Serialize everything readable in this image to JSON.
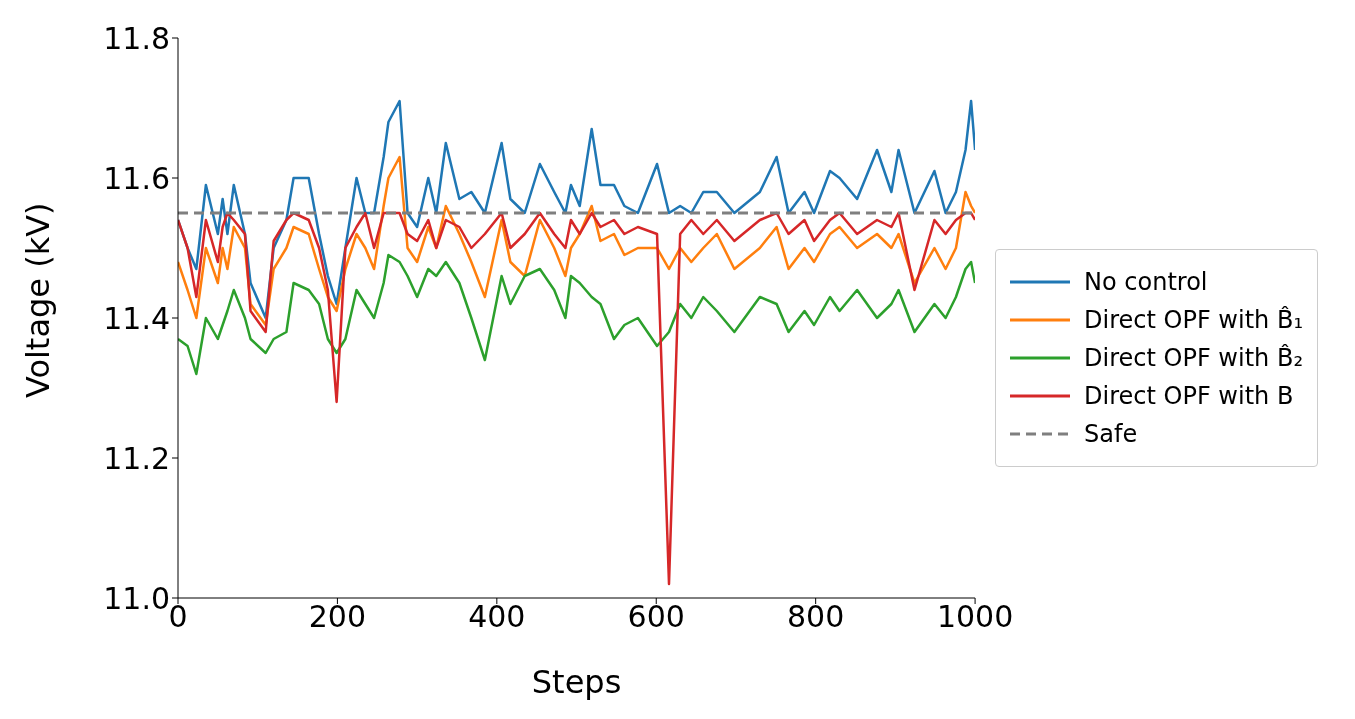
{
  "chart_data": {
    "type": "line",
    "xlabel": "Steps",
    "ylabel": "Voltage (kV)",
    "x": [
      0,
      12,
      23,
      35,
      50,
      56,
      62,
      70,
      84,
      91,
      110,
      120,
      136,
      145,
      164,
      177,
      188,
      199,
      210,
      224,
      235,
      246,
      258,
      264,
      278,
      288,
      300,
      314,
      324,
      336,
      353,
      368,
      385,
      406,
      417,
      435,
      454,
      472,
      486,
      493,
      504,
      519,
      530,
      547,
      560,
      577,
      601,
      616,
      630,
      644,
      659,
      676,
      698,
      730,
      751,
      766,
      786,
      798,
      818,
      830,
      852,
      877,
      895,
      904,
      924,
      949,
      963,
      976,
      988,
      995,
      1000
    ],
    "series": [
      {
        "name": "No control",
        "color": "#1f77b4",
        "values": [
          11.54,
          11.5,
          11.47,
          11.59,
          11.52,
          11.57,
          11.52,
          11.59,
          11.52,
          11.45,
          11.4,
          11.5,
          11.54,
          11.6,
          11.6,
          11.52,
          11.46,
          11.42,
          11.5,
          11.6,
          11.55,
          11.55,
          11.63,
          11.68,
          11.71,
          11.55,
          11.53,
          11.6,
          11.55,
          11.65,
          11.57,
          11.58,
          11.55,
          11.65,
          11.57,
          11.55,
          11.62,
          11.58,
          11.55,
          11.59,
          11.56,
          11.67,
          11.59,
          11.59,
          11.56,
          11.55,
          11.62,
          11.55,
          11.56,
          11.55,
          11.58,
          11.58,
          11.55,
          11.58,
          11.63,
          11.55,
          11.58,
          11.55,
          11.61,
          11.6,
          11.57,
          11.64,
          11.58,
          11.64,
          11.55,
          11.61,
          11.55,
          11.58,
          11.64,
          11.71,
          11.64
        ]
      },
      {
        "name": "Direct OPF with B̂₁",
        "color": "#ff7f0e",
        "values": [
          11.48,
          11.44,
          11.4,
          11.5,
          11.45,
          11.5,
          11.47,
          11.53,
          11.5,
          11.42,
          11.39,
          11.47,
          11.5,
          11.53,
          11.52,
          11.47,
          11.43,
          11.41,
          11.47,
          11.52,
          11.5,
          11.47,
          11.56,
          11.6,
          11.63,
          11.5,
          11.48,
          11.53,
          11.5,
          11.56,
          11.52,
          11.48,
          11.43,
          11.54,
          11.48,
          11.46,
          11.54,
          11.5,
          11.46,
          11.5,
          11.52,
          11.56,
          11.51,
          11.52,
          11.49,
          11.5,
          11.5,
          11.47,
          11.5,
          11.48,
          11.5,
          11.52,
          11.47,
          11.5,
          11.53,
          11.47,
          11.5,
          11.48,
          11.52,
          11.53,
          11.5,
          11.52,
          11.5,
          11.52,
          11.45,
          11.5,
          11.47,
          11.5,
          11.58,
          11.56,
          11.55
        ]
      },
      {
        "name": "Direct OPF with B̂₂",
        "color": "#2ca02c",
        "values": [
          11.37,
          11.36,
          11.32,
          11.4,
          11.37,
          11.39,
          11.41,
          11.44,
          11.4,
          11.37,
          11.35,
          11.37,
          11.38,
          11.45,
          11.44,
          11.42,
          11.37,
          11.35,
          11.37,
          11.44,
          11.42,
          11.4,
          11.45,
          11.49,
          11.48,
          11.46,
          11.43,
          11.47,
          11.46,
          11.48,
          11.45,
          11.4,
          11.34,
          11.46,
          11.42,
          11.46,
          11.47,
          11.44,
          11.4,
          11.46,
          11.45,
          11.43,
          11.42,
          11.37,
          11.39,
          11.4,
          11.36,
          11.38,
          11.42,
          11.4,
          11.43,
          11.41,
          11.38,
          11.43,
          11.42,
          11.38,
          11.41,
          11.39,
          11.43,
          11.41,
          11.44,
          11.4,
          11.42,
          11.44,
          11.38,
          11.42,
          11.4,
          11.43,
          11.47,
          11.48,
          11.45
        ]
      },
      {
        "name": "Direct OPF with B",
        "color": "#d62728",
        "values": [
          11.54,
          11.5,
          11.43,
          11.54,
          11.48,
          11.53,
          11.55,
          11.54,
          11.52,
          11.41,
          11.38,
          11.51,
          11.54,
          11.55,
          11.54,
          11.5,
          11.44,
          11.28,
          11.5,
          11.53,
          11.55,
          11.5,
          11.55,
          11.55,
          11.55,
          11.52,
          11.51,
          11.54,
          11.5,
          11.54,
          11.53,
          11.5,
          11.52,
          11.55,
          11.5,
          11.52,
          11.55,
          11.52,
          11.5,
          11.54,
          11.52,
          11.55,
          11.53,
          11.54,
          11.52,
          11.53,
          11.52,
          11.02,
          11.52,
          11.54,
          11.52,
          11.54,
          11.51,
          11.54,
          11.55,
          11.52,
          11.54,
          11.51,
          11.54,
          11.55,
          11.52,
          11.54,
          11.53,
          11.55,
          11.44,
          11.54,
          11.52,
          11.54,
          11.55,
          11.55,
          11.54
        ]
      }
    ],
    "ref_lines": [
      {
        "axis": "y",
        "value": 11.55,
        "label": "Safe",
        "color": "#7f7f7f",
        "line_style": "dashed"
      }
    ],
    "xlim": [
      0,
      1000
    ],
    "xticks": [
      0,
      200,
      400,
      600,
      800,
      1000
    ],
    "ylim": [
      11.0,
      11.8
    ],
    "yticks": [
      {
        "value": 11.0,
        "label": "11.0"
      },
      {
        "value": 11.2,
        "label": "11.2"
      },
      {
        "value": 11.4,
        "label": "11.4"
      },
      {
        "value": 11.6,
        "label": "11.6"
      },
      {
        "value": 11.8,
        "label": "11.8"
      }
    ],
    "legend": "right",
    "marker": "none",
    "line_style": "solid"
  }
}
